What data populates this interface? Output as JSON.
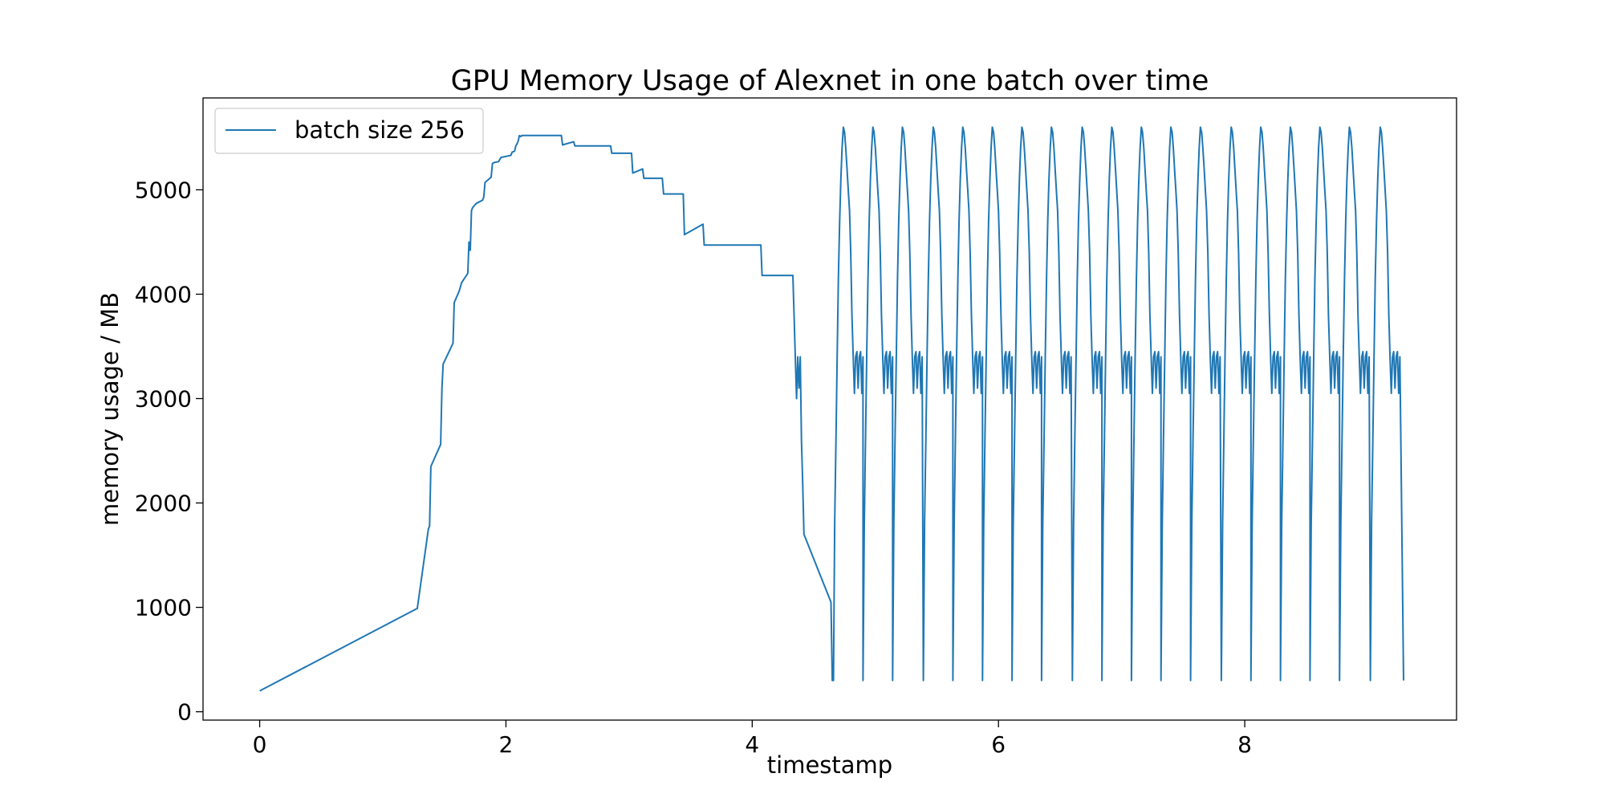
{
  "chart_data": {
    "type": "line",
    "title": "GPU Memory Usage of Alexnet in one batch over time",
    "xlabel": "timestamp",
    "ylabel": "memory usage / MB",
    "xlim": [
      -0.46,
      9.72
    ],
    "ylim": [
      -80,
      5880
    ],
    "xticks": [
      0,
      2,
      4,
      6,
      8
    ],
    "yticks": [
      0,
      1000,
      2000,
      3000,
      4000,
      5000
    ],
    "legend_position": "upper-left",
    "grid": false,
    "line_color": "#1f77b4",
    "warmup_x": [
      0,
      1.28,
      1.37,
      1.38,
      1.39,
      1.47,
      1.48,
      1.49,
      1.57,
      1.58,
      1.62,
      1.64,
      1.69,
      1.7,
      1.71,
      1.72,
      1.73,
      1.76,
      1.81,
      1.82,
      1.83,
      1.88,
      1.89,
      1.9,
      1.94,
      1.96,
      2.04,
      2.05,
      2.07,
      2.08,
      2.09,
      2.1,
      2.11,
      2.12,
      2.13,
      2.15,
      2.45,
      2.46,
      2.55,
      2.56,
      2.85,
      2.86,
      3.02,
      3.03,
      3.11,
      3.12,
      3.27,
      3.28,
      3.44,
      3.45,
      3.6,
      3.61,
      4.07,
      4.08,
      4.33,
      4.34,
      4.35,
      4.36,
      4.37,
      4.38,
      4.39,
      4.4,
      4.41,
      4.42,
      4.64,
      4.65
    ],
    "warmup_y": [
      200,
      990,
      1750,
      1780,
      2350,
      2560,
      3100,
      3330,
      3530,
      3920,
      4030,
      4110,
      4200,
      4500,
      4420,
      4800,
      4830,
      4870,
      4900,
      4930,
      5070,
      5120,
      5250,
      5260,
      5270,
      5310,
      5330,
      5360,
      5370,
      5420,
      5440,
      5470,
      5520,
      5510,
      5520,
      5520,
      5520,
      5430,
      5460,
      5420,
      5420,
      5350,
      5350,
      5160,
      5200,
      5110,
      5110,
      4960,
      4960,
      4570,
      4670,
      4470,
      4470,
      4180,
      4180,
      3800,
      3400,
      3000,
      3400,
      3100,
      3400,
      2600,
      2200,
      1700,
      1050,
      300
    ],
    "cycle_offset_x": [
      0,
      0.01,
      0.02,
      0.03,
      0.04,
      0.05,
      0.06,
      0.07,
      0.08,
      0.09,
      0.1,
      0.11,
      0.12,
      0.13,
      0.14,
      0.15,
      0.16,
      0.17,
      0.18,
      0.19,
      0.2,
      0.21,
      0.22,
      0.23,
      0.24
    ],
    "cycle_y": [
      300,
      1800,
      2600,
      3400,
      4150,
      4700,
      5100,
      5400,
      5600,
      5550,
      5400,
      5200,
      5000,
      4800,
      4400,
      3800,
      3400,
      3050,
      3400,
      3450,
      3100,
      3400,
      3450,
      3050,
      3400
    ],
    "cycle_start_x": [
      4.66,
      4.9,
      5.14,
      5.39,
      5.63,
      5.87,
      6.11,
      6.35,
      6.6,
      6.84,
      7.08,
      7.32,
      7.56,
      7.81,
      8.05,
      8.29,
      8.53,
      8.77,
      9.02
    ],
    "final_x": 9.29,
    "final_y": 300,
    "series": [
      {
        "name": "batch size 256"
      }
    ]
  }
}
